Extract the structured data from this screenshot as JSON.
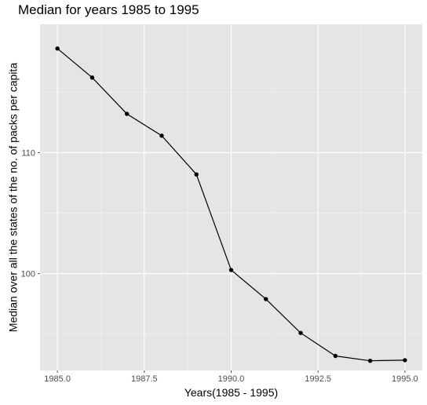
{
  "chart_data": {
    "type": "line",
    "title": "Median for years 1985 to 1995",
    "xlabel": "Years(1985 - 1995)",
    "ylabel": "Median over all the states of the no. of packs per capita",
    "xlim": [
      1984.5,
      1995.5
    ],
    "ylim": [
      92.0,
      120.6
    ],
    "x_ticks": [
      1985.0,
      1987.5,
      1990.0,
      1992.5,
      1995.0
    ],
    "x_tick_labels": [
      "1985.0",
      "1987.5",
      "1990.0",
      "1992.5",
      "1995.0"
    ],
    "y_ticks": [
      100,
      110
    ],
    "y_tick_labels": [
      "100",
      "110"
    ],
    "grid": true,
    "x": [
      1985,
      1986,
      1987,
      1988,
      1989,
      1990,
      1991,
      1992,
      1993,
      1994,
      1995
    ],
    "values": [
      118.6,
      116.2,
      113.2,
      111.4,
      108.2,
      100.3,
      97.9,
      95.1,
      93.2,
      92.8,
      92.85
    ],
    "colors": {
      "panel": "#e5e5e5",
      "grid_major": "#ffffff",
      "grid_minor": "#f2f2f2",
      "line": "#000000",
      "point": "#000000",
      "tick": "#4d4d4d"
    }
  }
}
